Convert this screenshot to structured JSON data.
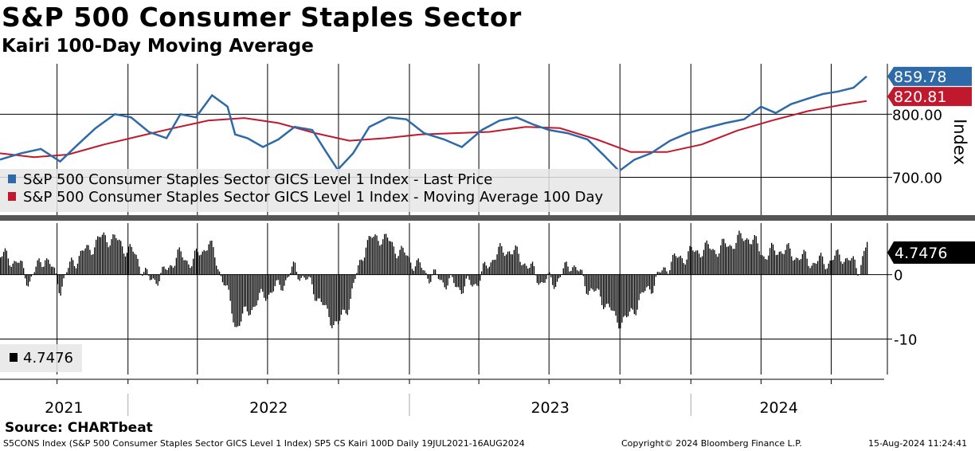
{
  "title": "S&P 500 Consumer Staples Sector",
  "subtitle": "Kairi 100-Day Moving Average",
  "source": "Source: CHARTbeat",
  "footer": {
    "left": "S5CONS Index (S&P 500 Consumer Staples Sector GICS Level 1 Index) SP5 CS Kairi 100D  Daily 19JUL2021-16AUG2024",
    "center": "Copyright© 2024 Bloomberg Finance L.P.",
    "right": "15-Aug-2024 11:24:41"
  },
  "colors": {
    "price": "#2e6aa8",
    "ma": "#c0182c",
    "kairi": "#000000",
    "grid": "#000000"
  },
  "chart_data": [
    {
      "type": "line",
      "ylabel": "Index",
      "ylim": [
        640,
        880
      ],
      "yticks": [
        700,
        800
      ],
      "ytick_labels": [
        "700.00",
        "800.00"
      ],
      "x_tick_dates": [
        "2021-10-01",
        "2022-01-01",
        "2022-04-01",
        "2022-07-01",
        "2022-10-01",
        "2023-01-01",
        "2023-04-01",
        "2023-07-01",
        "2023-10-01",
        "2024-01-01",
        "2024-04-01",
        "2024-07-01"
      ],
      "x_range": [
        "2021-07-19",
        "2024-08-16"
      ],
      "legend": [
        "S&P 500 Consumer Staples Sector GICS Level 1 Index - Last Price",
        "S&P 500 Consumer Staples Sector GICS Level 1 Index - Moving Average 100 Day"
      ],
      "last_value_labels": [
        "859.78",
        "820.81"
      ],
      "series": [
        {
          "name": "S&P 500 Consumer Staples Sector GICS Level 1 Index - Last Price",
          "x": [
            "2021-07-19",
            "2021-08-15",
            "2021-09-10",
            "2021-10-05",
            "2021-10-28",
            "2021-11-20",
            "2021-12-15",
            "2022-01-05",
            "2022-01-28",
            "2022-02-20",
            "2022-03-10",
            "2022-03-30",
            "2022-04-20",
            "2022-05-10",
            "2022-05-20",
            "2022-06-05",
            "2022-06-25",
            "2022-07-15",
            "2022-08-05",
            "2022-08-28",
            "2022-09-15",
            "2022-09-30",
            "2022-10-20",
            "2022-11-10",
            "2022-12-05",
            "2022-12-28",
            "2023-01-20",
            "2023-02-15",
            "2023-03-10",
            "2023-04-05",
            "2023-04-28",
            "2023-05-20",
            "2023-06-10",
            "2023-07-01",
            "2023-07-25",
            "2023-08-20",
            "2023-09-10",
            "2023-09-30",
            "2023-10-20",
            "2023-11-10",
            "2023-12-05",
            "2023-12-28",
            "2024-01-20",
            "2024-02-15",
            "2024-03-10",
            "2024-04-01",
            "2024-04-20",
            "2024-05-10",
            "2024-05-30",
            "2024-06-20",
            "2024-07-10",
            "2024-07-30",
            "2024-08-16"
          ],
          "y": [
            728,
            738,
            745,
            725,
            752,
            778,
            800,
            795,
            772,
            762,
            800,
            795,
            830,
            812,
            768,
            762,
            748,
            760,
            780,
            775,
            740,
            712,
            738,
            780,
            795,
            792,
            770,
            760,
            748,
            775,
            790,
            795,
            784,
            775,
            770,
            760,
            735,
            710,
            728,
            738,
            758,
            770,
            778,
            786,
            792,
            812,
            802,
            816,
            824,
            832,
            836,
            842,
            860
          ]
        },
        {
          "name": "S&P 500 Consumer Staples Sector GICS Level 1 Index - Moving Average 100 Day",
          "x": [
            "2021-07-19",
            "2021-09-01",
            "2021-10-15",
            "2021-12-01",
            "2022-01-15",
            "2022-03-01",
            "2022-04-15",
            "2022-06-01",
            "2022-07-15",
            "2022-09-01",
            "2022-10-15",
            "2022-12-01",
            "2023-01-15",
            "2023-03-01",
            "2023-04-15",
            "2023-06-01",
            "2023-07-15",
            "2023-09-01",
            "2023-10-15",
            "2023-12-01",
            "2024-01-15",
            "2024-03-01",
            "2024-04-15",
            "2024-06-01",
            "2024-07-15",
            "2024-08-16"
          ],
          "y": [
            738,
            732,
            736,
            752,
            765,
            778,
            790,
            794,
            786,
            770,
            758,
            762,
            768,
            770,
            772,
            780,
            778,
            760,
            740,
            740,
            752,
            774,
            790,
            805,
            815,
            821
          ]
        }
      ]
    },
    {
      "type": "bar",
      "ylim": [
        -15.5,
        8
      ],
      "yticks": [
        0,
        -10
      ],
      "ytick_labels": [
        "0",
        "-10"
      ],
      "legend": [
        "4.7476"
      ],
      "last_value_label": "4.7476",
      "series": [
        {
          "name": "4.7476",
          "x": [
            "2021-07-19",
            "2021-08-10",
            "2021-08-25",
            "2021-09-15",
            "2021-10-05",
            "2021-10-20",
            "2021-11-10",
            "2021-12-01",
            "2021-12-20",
            "2022-01-10",
            "2022-01-28",
            "2022-02-15",
            "2022-03-05",
            "2022-03-25",
            "2022-04-15",
            "2022-05-05",
            "2022-05-20",
            "2022-06-10",
            "2022-06-28",
            "2022-07-15",
            "2022-08-05",
            "2022-08-28",
            "2022-09-15",
            "2022-09-30",
            "2022-10-15",
            "2022-11-05",
            "2022-11-25",
            "2022-12-15",
            "2023-01-05",
            "2023-01-25",
            "2023-02-15",
            "2023-03-10",
            "2023-03-30",
            "2023-04-20",
            "2023-05-10",
            "2023-05-30",
            "2023-06-20",
            "2023-07-10",
            "2023-07-30",
            "2023-08-20",
            "2023-09-10",
            "2023-09-25",
            "2023-10-10",
            "2023-10-25",
            "2023-11-15",
            "2023-12-05",
            "2023-12-25",
            "2024-01-15",
            "2024-02-05",
            "2024-02-25",
            "2024-03-15",
            "2024-04-05",
            "2024-04-25",
            "2024-05-15",
            "2024-06-05",
            "2024-06-25",
            "2024-07-15",
            "2024-08-05",
            "2024-08-16"
          ],
          "y": [
            3,
            2,
            -1,
            3,
            -2,
            2,
            4,
            6,
            5,
            3,
            -1,
            0,
            3,
            2,
            5,
            -1,
            -8,
            -5,
            -3,
            -2,
            1,
            -2,
            -6,
            -8,
            -4,
            5,
            6,
            4,
            2,
            0,
            -1,
            -2,
            -1,
            3,
            4,
            2,
            -1,
            -1,
            2,
            -2,
            -4,
            -7,
            -7,
            -4,
            -1,
            2,
            3,
            4,
            4,
            5,
            6,
            3,
            4,
            3,
            2,
            2,
            3,
            1,
            4.7476
          ]
        }
      ]
    }
  ]
}
